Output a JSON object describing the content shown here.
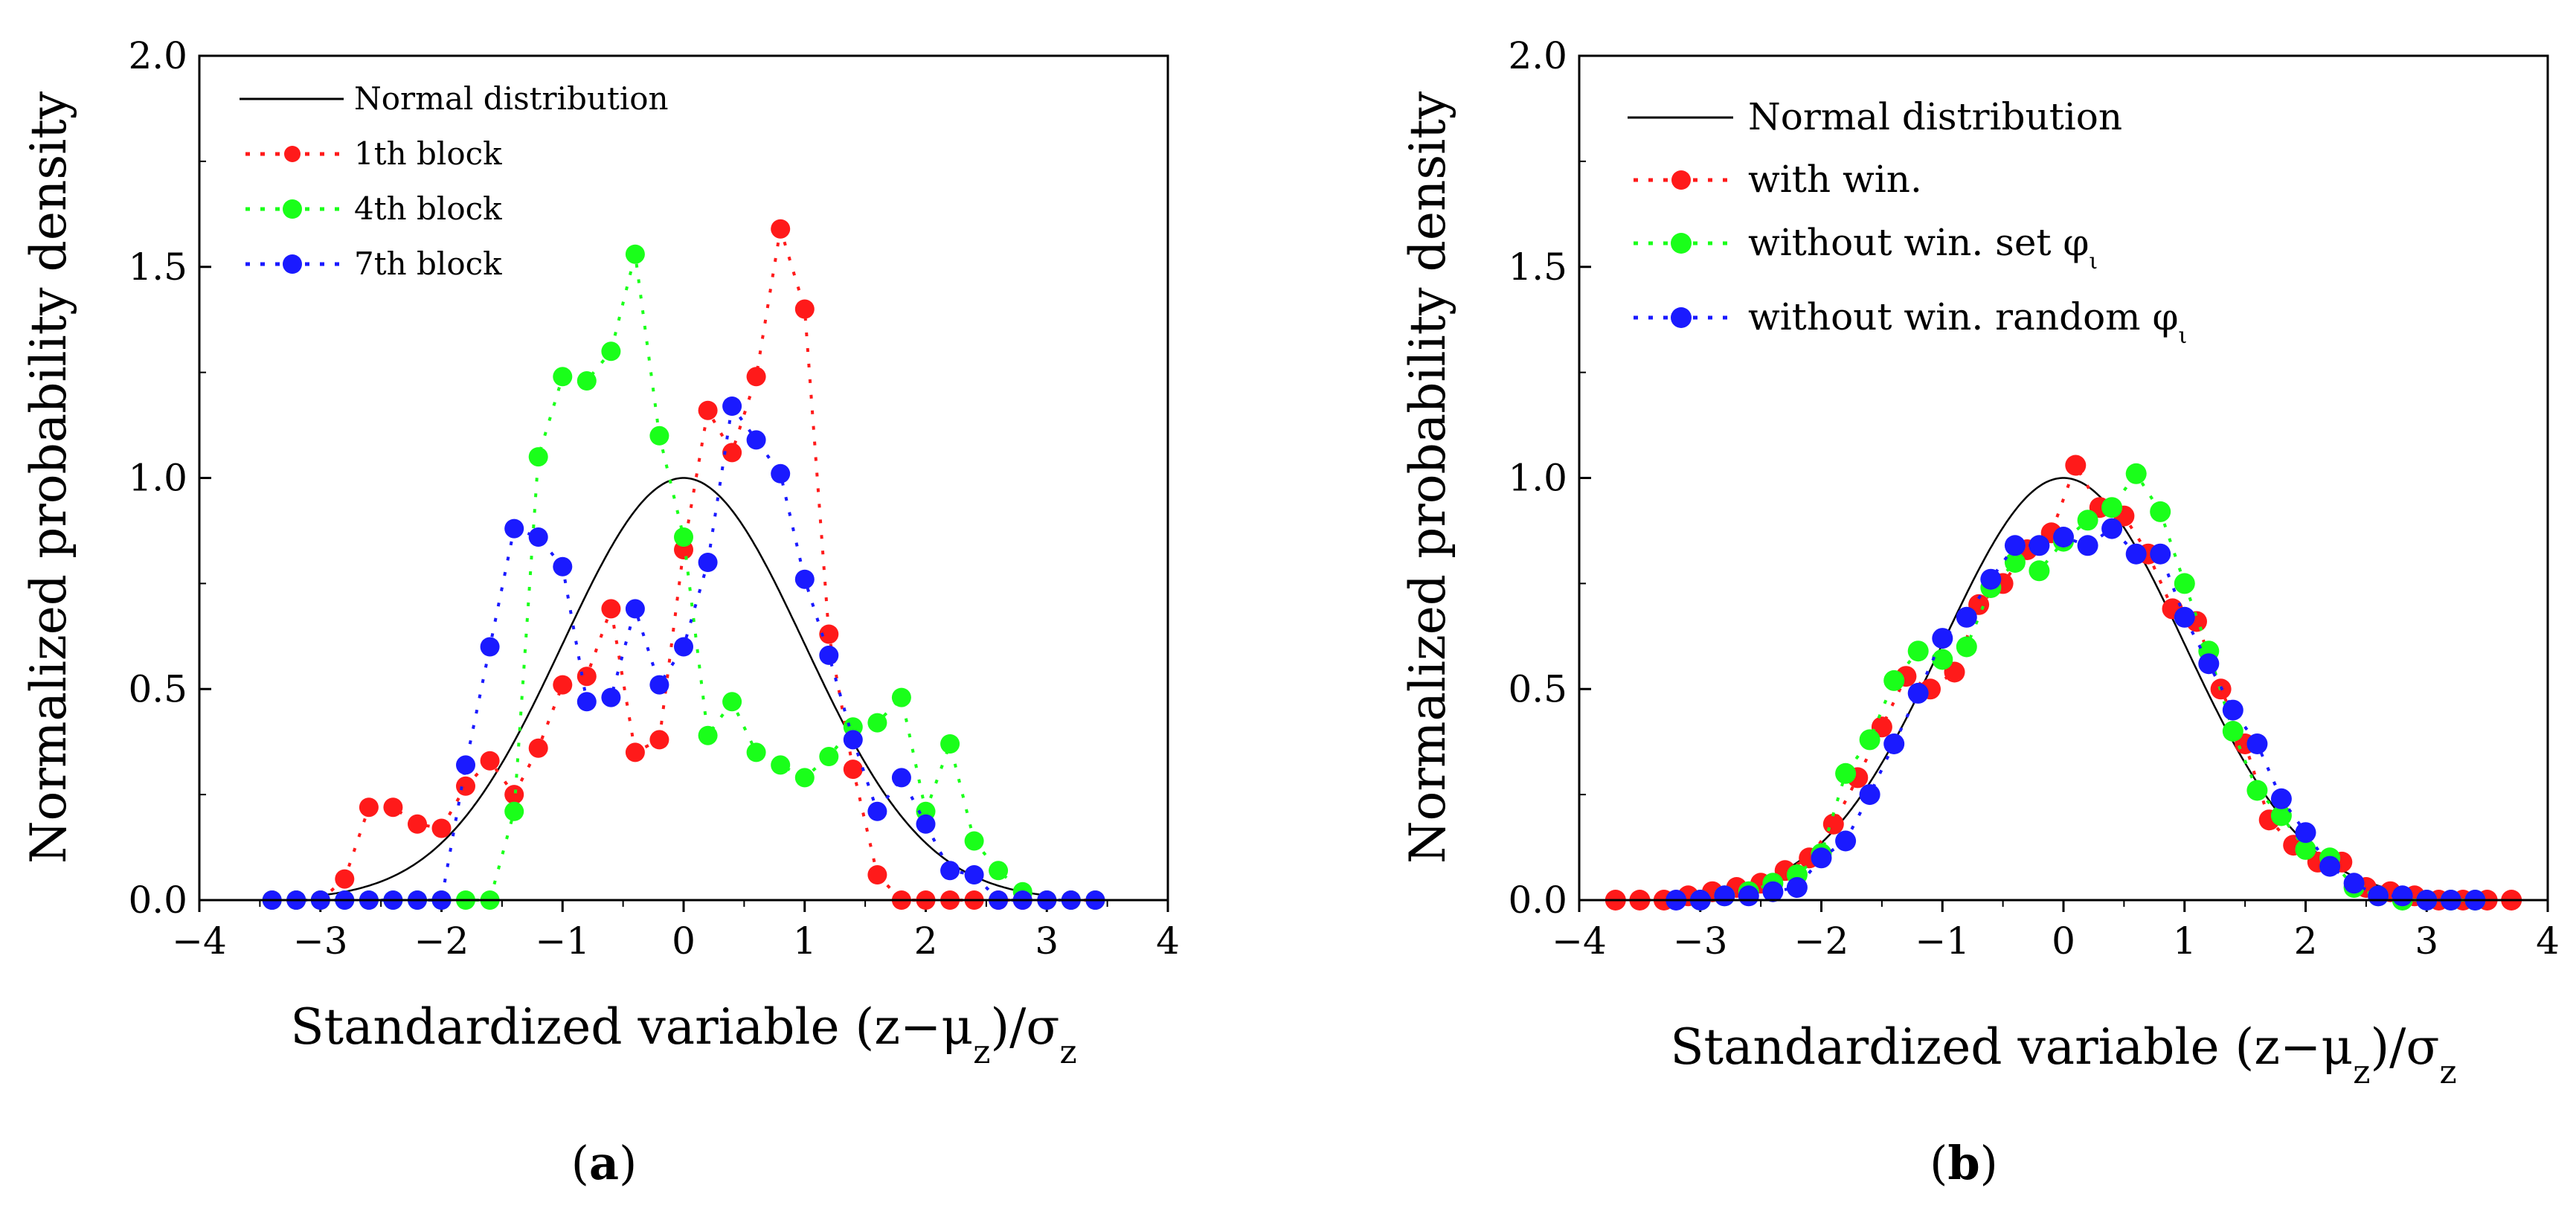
{
  "chart_data": [
    {
      "type": "scatter",
      "panel_label": "a",
      "xlabel": "Standardized variable (z−μz)/σz",
      "ylabel": "Normalized probability density",
      "xlim": [
        -4,
        4
      ],
      "ylim": [
        0,
        2.0
      ],
      "xticks": [
        -4,
        -3,
        -2,
        -1,
        0,
        1,
        2,
        3,
        4
      ],
      "xtick_labels": [
        "−4",
        "−3",
        "−2",
        "−1",
        "0",
        "1",
        "2",
        "3",
        "4"
      ],
      "yticks": [
        0,
        0.5,
        1.0,
        1.5,
        2.0
      ],
      "ytick_labels": [
        "0.0",
        "0.5",
        "1.0",
        "1.5",
        "2.0"
      ],
      "legend": [
        "Normal distribution",
        "1th block",
        "4th block",
        "7th block"
      ],
      "curve": {
        "name": "Normal distribution",
        "color": "#000000"
      },
      "series": [
        {
          "name": "1th block",
          "color": "#ff1a1a",
          "x": [
            -3.4,
            -3.2,
            -3.0,
            -2.8,
            -2.6,
            -2.4,
            -2.2,
            -2.0,
            -1.8,
            -1.6,
            -1.4,
            -1.2,
            -1.0,
            -0.8,
            -0.6,
            -0.4,
            -0.2,
            0.0,
            0.2,
            0.4,
            0.6,
            0.8,
            1.0,
            1.2,
            1.4,
            1.6,
            1.8,
            2.0,
            2.2,
            2.4,
            2.6,
            2.8,
            3.0,
            3.2,
            3.4
          ],
          "y": [
            0.0,
            0.0,
            0.0,
            0.05,
            0.22,
            0.22,
            0.18,
            0.17,
            0.27,
            0.33,
            0.25,
            0.36,
            0.51,
            0.53,
            0.69,
            0.35,
            0.38,
            0.83,
            1.16,
            1.06,
            1.24,
            1.59,
            1.4,
            0.63,
            0.31,
            0.06,
            0.0,
            0.0,
            0.0,
            0.0,
            0.0,
            0.0,
            0.0,
            0.0,
            0.0
          ]
        },
        {
          "name": "4th block",
          "color": "#1aff1a",
          "x": [
            -3.4,
            -3.2,
            -3.0,
            -2.8,
            -2.6,
            -2.4,
            -2.2,
            -2.0,
            -1.8,
            -1.6,
            -1.4,
            -1.2,
            -1.0,
            -0.8,
            -0.6,
            -0.4,
            -0.2,
            0.0,
            0.2,
            0.4,
            0.6,
            0.8,
            1.0,
            1.2,
            1.4,
            1.6,
            1.8,
            2.0,
            2.2,
            2.4,
            2.6,
            2.8,
            3.0,
            3.2,
            3.4
          ],
          "y": [
            0.0,
            0.0,
            0.0,
            0.0,
            0.0,
            0.0,
            0.0,
            0.0,
            0.0,
            0.0,
            0.21,
            1.05,
            1.24,
            1.23,
            1.3,
            1.53,
            1.1,
            0.86,
            0.39,
            0.47,
            0.35,
            0.32,
            0.29,
            0.34,
            0.41,
            0.42,
            0.48,
            0.21,
            0.37,
            0.14,
            0.07,
            0.02,
            0.0,
            0.0,
            0.0
          ]
        },
        {
          "name": "7th block",
          "color": "#1a1aff",
          "x": [
            -3.4,
            -3.2,
            -3.0,
            -2.8,
            -2.6,
            -2.4,
            -2.2,
            -2.0,
            -1.8,
            -1.6,
            -1.4,
            -1.2,
            -1.0,
            -0.8,
            -0.6,
            -0.4,
            -0.2,
            0.0,
            0.2,
            0.4,
            0.6,
            0.8,
            1.0,
            1.2,
            1.4,
            1.6,
            1.8,
            2.0,
            2.2,
            2.4,
            2.6,
            2.8,
            3.0,
            3.2,
            3.4
          ],
          "y": [
            0.0,
            0.0,
            0.0,
            0.0,
            0.0,
            0.0,
            0.0,
            0.0,
            0.32,
            0.6,
            0.88,
            0.86,
            0.79,
            0.47,
            0.48,
            0.69,
            0.51,
            0.6,
            0.8,
            1.17,
            1.09,
            1.01,
            0.76,
            0.58,
            0.38,
            0.21,
            0.29,
            0.18,
            0.07,
            0.06,
            0.0,
            0.0,
            0.0,
            0.0,
            0.0
          ]
        }
      ]
    },
    {
      "type": "scatter",
      "panel_label": "b",
      "xlabel": "Standardized variable (z−μz)/σz",
      "ylabel": "Normalized probability density",
      "xlim": [
        -4,
        4
      ],
      "ylim": [
        0,
        2.0
      ],
      "xticks": [
        -4,
        -3,
        -2,
        -1,
        0,
        1,
        2,
        3,
        4
      ],
      "xtick_labels": [
        "−4",
        "−3",
        "−2",
        "−1",
        "0",
        "1",
        "2",
        "3",
        "4"
      ],
      "yticks": [
        0,
        0.5,
        1.0,
        1.5,
        2.0
      ],
      "ytick_labels": [
        "0.0",
        "0.5",
        "1.0",
        "1.5",
        "2.0"
      ],
      "legend": [
        "Normal distribution",
        "with win.",
        "without win. set φι",
        "without win. random φι"
      ],
      "curve": {
        "name": "Normal distribution",
        "color": "#000000"
      },
      "series": [
        {
          "name": "with win.",
          "color": "#ff1a1a",
          "x": [
            -3.7,
            -3.5,
            -3.3,
            -3.1,
            -2.9,
            -2.7,
            -2.5,
            -2.3,
            -2.1,
            -1.9,
            -1.7,
            -1.5,
            -1.3,
            -1.1,
            -0.9,
            -0.7,
            -0.5,
            -0.3,
            -0.1,
            0.1,
            0.3,
            0.5,
            0.7,
            0.9,
            1.1,
            1.3,
            1.5,
            1.7,
            1.9,
            2.1,
            2.3,
            2.5,
            2.7,
            2.9,
            3.1,
            3.3,
            3.5,
            3.7
          ],
          "y": [
            0.0,
            0.0,
            0.0,
            0.01,
            0.02,
            0.03,
            0.04,
            0.07,
            0.1,
            0.18,
            0.29,
            0.41,
            0.53,
            0.5,
            0.54,
            0.7,
            0.75,
            0.83,
            0.87,
            1.03,
            0.93,
            0.91,
            0.82,
            0.69,
            0.66,
            0.5,
            0.37,
            0.19,
            0.13,
            0.09,
            0.09,
            0.03,
            0.02,
            0.01,
            0.0,
            0.0,
            0.0,
            0.0
          ]
        },
        {
          "name": "without win. set φι",
          "color": "#1aff1a",
          "x": [
            -3.0,
            -2.8,
            -2.6,
            -2.4,
            -2.2,
            -2.0,
            -1.8,
            -1.6,
            -1.4,
            -1.2,
            -1.0,
            -0.8,
            -0.6,
            -0.4,
            -0.2,
            0.0,
            0.2,
            0.4,
            0.6,
            0.8,
            1.0,
            1.2,
            1.4,
            1.6,
            1.8,
            2.0,
            2.2,
            2.4,
            2.6,
            2.8,
            3.0,
            3.2,
            3.4
          ],
          "y": [
            0.0,
            0.01,
            0.02,
            0.04,
            0.06,
            0.11,
            0.3,
            0.38,
            0.52,
            0.59,
            0.57,
            0.6,
            0.74,
            0.8,
            0.78,
            0.85,
            0.9,
            0.93,
            1.01,
            0.92,
            0.75,
            0.59,
            0.4,
            0.26,
            0.2,
            0.12,
            0.1,
            0.03,
            0.01,
            0.0,
            0.0,
            0.0,
            0.0
          ]
        },
        {
          "name": "without win. random φι",
          "color": "#1a1aff",
          "x": [
            -3.2,
            -3.0,
            -2.8,
            -2.6,
            -2.4,
            -2.2,
            -2.0,
            -1.8,
            -1.6,
            -1.4,
            -1.2,
            -1.0,
            -0.8,
            -0.6,
            -0.4,
            -0.2,
            0.0,
            0.2,
            0.4,
            0.6,
            0.8,
            1.0,
            1.2,
            1.4,
            1.6,
            1.8,
            2.0,
            2.2,
            2.4,
            2.6,
            2.8,
            3.0,
            3.2,
            3.4
          ],
          "y": [
            0.0,
            0.0,
            0.01,
            0.01,
            0.02,
            0.03,
            0.1,
            0.14,
            0.25,
            0.37,
            0.49,
            0.62,
            0.67,
            0.76,
            0.84,
            0.84,
            0.86,
            0.84,
            0.88,
            0.82,
            0.82,
            0.67,
            0.56,
            0.45,
            0.37,
            0.24,
            0.16,
            0.08,
            0.04,
            0.01,
            0.01,
            0.0,
            0.0,
            0.0
          ]
        }
      ]
    }
  ],
  "captions": {
    "a": {
      "open": "(",
      "letter": "a",
      "close": ")"
    },
    "b": {
      "open": "(",
      "letter": "b",
      "close": ")"
    }
  }
}
